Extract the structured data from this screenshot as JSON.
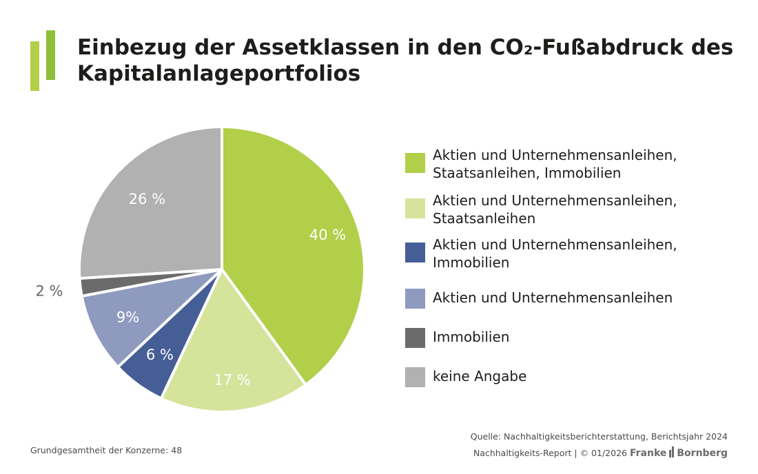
{
  "header": {
    "title": "Einbezug der Assetklassen in den CO₂-Fußabdruck des Kapitalanlageportfolios"
  },
  "brand_colors": {
    "logo_light": "#b2cf49",
    "logo_dark": "#8fbf3a"
  },
  "chart_data": {
    "type": "pie",
    "categories": [
      "Aktien und Unternehmensanleihen, Staatsanleihen, Immobilien",
      "Aktien und Unternehmensanleihen, Staatsanleihen",
      "Aktien und Unternehmensanleihen, Immobilien",
      "Aktien und Unternehmensanleihen",
      "Immobilien",
      "keine Angabe"
    ],
    "values": [
      40,
      17,
      6,
      9,
      2,
      26
    ],
    "data_labels": [
      "40 %",
      "17 %",
      "6 %",
      "9%",
      "2 %",
      "26 %"
    ],
    "colors": [
      "#b2cf49",
      "#d5e39b",
      "#465e96",
      "#8f9abf",
      "#6b6b6b",
      "#b1b1b1"
    ],
    "label_colors": [
      "#ffffff",
      "#ffffff",
      "#ffffff",
      "#ffffff",
      "#666666",
      "#ffffff"
    ],
    "legend_position": "right"
  },
  "legend": {
    "items": [
      {
        "line1": "Aktien und Unternehmensanleihen,",
        "line2": "Staatsanleihen, Immobilien"
      },
      {
        "line1": "Aktien und Unternehmensanleihen,",
        "line2": "Staatsanleihen"
      },
      {
        "line1": "Aktien und Unternehmensanleihen,",
        "line2": "Immobilien"
      },
      {
        "line1": "Aktien und Unternehmensanleihen",
        "line2": ""
      },
      {
        "line1": "Immobilien",
        "line2": ""
      },
      {
        "line1": "keine Angabe",
        "line2": ""
      }
    ]
  },
  "footer": {
    "population": "Grundgesamtheit der Konzerne: 48",
    "source": "Quelle: Nachhaltigkeitsberichterstattung, Berichtsjahr 2024",
    "report": "Nachhaltigkeits-Report | © 01/2026",
    "brand_left": "Franke",
    "brand_right": "Bornberg"
  }
}
